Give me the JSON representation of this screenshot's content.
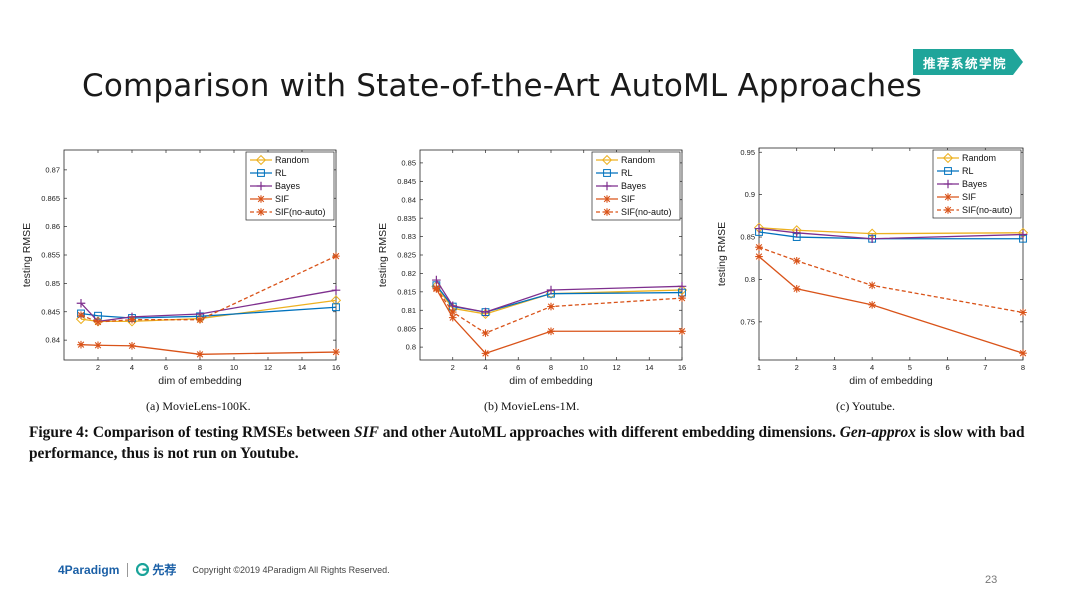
{
  "slide": {
    "title": "Comparison with State-of-the-Art AutoML Approaches",
    "badge": "推荐系统学院",
    "page_number": "23"
  },
  "figure_caption": {
    "prefix": "Figure 4: Comparison of testing RMSEs between ",
    "method": "SIF",
    "middle": " and other AutoML approaches with different embedding dimensions. ",
    "italic_term": "Gen-approx",
    "suffix": " is slow with bad performance, thus is not run on Youtube."
  },
  "footer": {
    "logo_main": "4Paradigm",
    "logo_second": "先荐",
    "copyright": "Copyright ©2019 4Paradigm All Rights Reserved."
  },
  "colors": {
    "Random": "#EDB120",
    "RL": "#0072BD",
    "Bayes": "#7E2F8E",
    "SIF": "#D95319",
    "SIF(no-auto)": "#D95319"
  },
  "chart_data": [
    {
      "type": "line",
      "subcaption": "(a) MovieLens-100K.",
      "xlabel": "dim of embedding",
      "ylabel": "testing RMSE",
      "xlim": [
        0,
        16
      ],
      "ylim": [
        0.8365,
        0.8735
      ],
      "xticks": [
        2,
        4,
        6,
        8,
        10,
        12,
        14,
        16
      ],
      "yticks": [
        0.84,
        0.845,
        0.85,
        0.855,
        0.86,
        0.865,
        0.87
      ],
      "ytick_labels": [
        "0.84",
        "0.845",
        "0.85",
        "0.855",
        "0.86",
        "0.865",
        "0.87"
      ],
      "x": [
        1,
        2,
        4,
        8,
        16
      ],
      "legend_position": "top-right",
      "series": [
        {
          "name": "Random",
          "marker": "diamond",
          "dash": false,
          "values": [
            0.8437,
            0.8433,
            0.8433,
            0.8438,
            0.847
          ]
        },
        {
          "name": "RL",
          "marker": "square",
          "dash": false,
          "values": [
            0.8447,
            0.8443,
            0.8439,
            0.8442,
            0.8458
          ]
        },
        {
          "name": "Bayes",
          "marker": "plus",
          "dash": false,
          "values": [
            0.8465,
            0.8433,
            0.8441,
            0.8446,
            0.8488
          ]
        },
        {
          "name": "SIF",
          "marker": "asterisk",
          "dash": false,
          "values": [
            0.8392,
            0.8391,
            0.839,
            0.8375,
            0.8379
          ]
        },
        {
          "name": "SIF(no-auto)",
          "marker": "asterisk",
          "dash": true,
          "values": [
            0.8444,
            0.8432,
            0.8436,
            0.8436,
            0.8548
          ]
        }
      ]
    },
    {
      "type": "line",
      "subcaption": "(b) MovieLens-1M.",
      "xlabel": "dim of embedding",
      "ylabel": "testing RMSE",
      "xlim": [
        0,
        16
      ],
      "ylim": [
        0.7965,
        0.8535
      ],
      "xticks": [
        2,
        4,
        6,
        8,
        10,
        12,
        14,
        16
      ],
      "yticks": [
        0.8,
        0.805,
        0.81,
        0.815,
        0.82,
        0.825,
        0.83,
        0.835,
        0.84,
        0.845,
        0.85
      ],
      "ytick_labels": [
        "0.8",
        "0.805",
        "0.81",
        "0.815",
        "0.82",
        "0.825",
        "0.83",
        "0.835",
        "0.84",
        "0.845",
        "0.85"
      ],
      "x": [
        1,
        2,
        4,
        8,
        16
      ],
      "legend_position": "top-right",
      "series": [
        {
          "name": "Random",
          "marker": "diamond",
          "dash": false,
          "values": [
            0.8165,
            0.8105,
            0.809,
            0.8145,
            0.8155
          ]
        },
        {
          "name": "RL",
          "marker": "square",
          "dash": false,
          "values": [
            0.8168,
            0.811,
            0.8095,
            0.8145,
            0.8148
          ]
        },
        {
          "name": "Bayes",
          "marker": "plus",
          "dash": false,
          "values": [
            0.8182,
            0.8112,
            0.8095,
            0.8155,
            0.8165
          ]
        },
        {
          "name": "SIF",
          "marker": "asterisk",
          "dash": false,
          "values": [
            0.8158,
            0.808,
            0.7983,
            0.8043,
            0.8043
          ]
        },
        {
          "name": "SIF(no-auto)",
          "marker": "asterisk",
          "dash": true,
          "values": [
            0.816,
            0.8095,
            0.8038,
            0.811,
            0.8133
          ]
        }
      ]
    },
    {
      "type": "line",
      "subcaption": "(c) Youtube.",
      "xlabel": "dim of embedding",
      "ylabel": "testing RMSE",
      "xlim": [
        1,
        8
      ],
      "ylim": [
        0.705,
        0.955
      ],
      "xticks": [
        1,
        2,
        3,
        4,
        5,
        6,
        7,
        8
      ],
      "yticks": [
        0.75,
        0.8,
        0.85,
        0.9,
        0.95
      ],
      "ytick_labels": [
        "0.75",
        "0.8",
        "0.85",
        "0.9",
        "0.95"
      ],
      "x": [
        1,
        2,
        4,
        8
      ],
      "legend_position": "top-right",
      "series": [
        {
          "name": "Random",
          "marker": "diamond",
          "dash": false,
          "values": [
            0.861,
            0.858,
            0.854,
            0.855
          ]
        },
        {
          "name": "RL",
          "marker": "square",
          "dash": false,
          "values": [
            0.856,
            0.85,
            0.848,
            0.848
          ]
        },
        {
          "name": "Bayes",
          "marker": "plus",
          "dash": false,
          "values": [
            0.86,
            0.855,
            0.848,
            0.853
          ]
        },
        {
          "name": "SIF",
          "marker": "asterisk",
          "dash": false,
          "values": [
            0.827,
            0.789,
            0.77,
            0.713
          ]
        },
        {
          "name": "SIF(no-auto)",
          "marker": "asterisk",
          "dash": true,
          "values": [
            0.838,
            0.822,
            0.793,
            0.761
          ]
        }
      ]
    }
  ]
}
